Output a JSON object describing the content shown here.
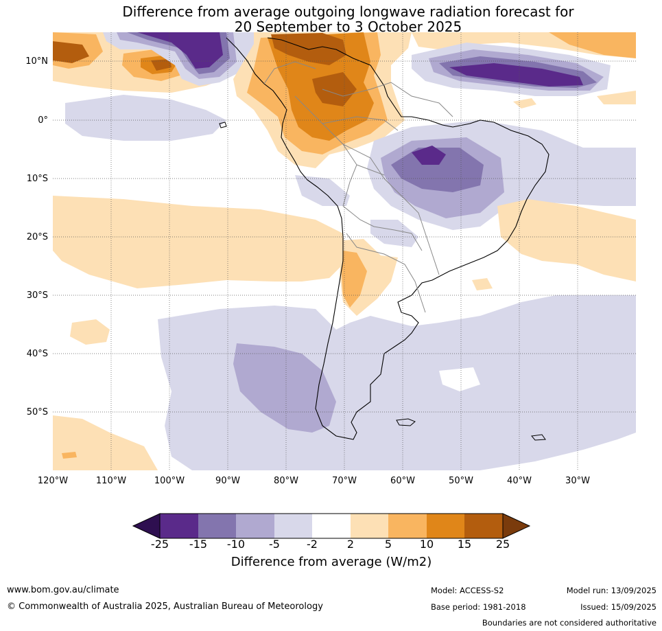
{
  "title": {
    "line1": "Difference from average outgoing longwave radiation forecast for",
    "line2": "20 September to 3 October 2025"
  },
  "map": {
    "latitude_labels": [
      "10°N",
      "0°",
      "10°S",
      "20°S",
      "30°S",
      "40°S",
      "50°S"
    ],
    "longitude_labels": [
      "120°W",
      "110°W",
      "100°W",
      "90°W",
      "80°W",
      "70°W",
      "60°W",
      "50°W",
      "40°W",
      "30°W"
    ]
  },
  "colorbar": {
    "title": "Difference from average (W/m2)",
    "ticks": [
      "-25",
      "-15",
      "-10",
      "-5",
      "-2",
      "2",
      "5",
      "10",
      "15",
      "25"
    ],
    "colors": [
      "#2e0f50",
      "#5a2a8a",
      "#8375ae",
      "#b0a9d0",
      "#d8d8ea",
      "#ffffff",
      "#fde0b5",
      "#f9b560",
      "#e08619",
      "#b35d0e",
      "#7a3b0c"
    ]
  },
  "footer": {
    "website": "www.bom.gov.au/climate",
    "copyright": "© Commonwealth of Australia 2025, Australian Bureau of Meteorology",
    "model": "Model: ACCESS-S2",
    "base_period": "Base period: 1981-2018",
    "model_run": "Model run: 13/09/2025",
    "issued": "Issued: 15/09/2025",
    "disclaimer": "Boundaries are not considered authoritative"
  }
}
